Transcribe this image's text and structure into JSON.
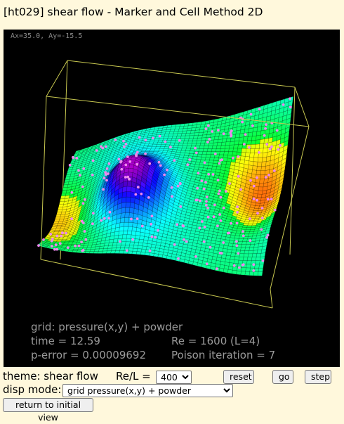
{
  "title": "[ht029] shear flow - Marker and Cell Method 2D",
  "viewport": {
    "rotation_readout": "Ax=35.0, Ay=-15.5",
    "info": {
      "grid_label": "grid: pressure(x,y) + powder",
      "time": "time = 12.59",
      "re": "Re = 1600 (L=4)",
      "p_error": "p-error = 0.00009692",
      "poison": "Poison iteration = 7"
    },
    "colors": {
      "background": "#000000",
      "bounding_box": "#c8c850",
      "info_text": "#9a9a9a",
      "powder": "#ee88ee"
    }
  },
  "controls": {
    "theme_label": "theme: shear flow",
    "re_l_label": "Re/L =",
    "re_l_selected": "400",
    "reset_label": "reset",
    "go_label": "go",
    "step_label": "step",
    "disp_mode_label": "disp mode:",
    "disp_mode_selected": "grid pressure(x,y) + powder",
    "return_label": "return to initial view"
  },
  "page_background": "#fff8dc"
}
